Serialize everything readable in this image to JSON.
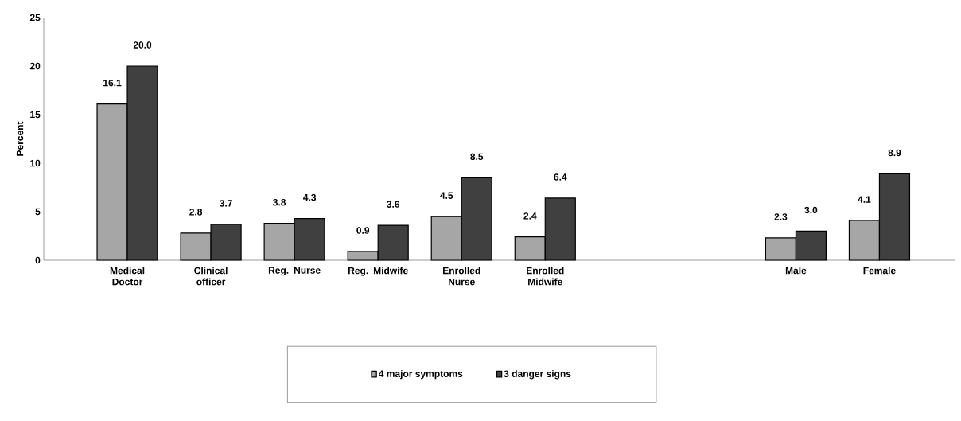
{
  "chart_data": {
    "type": "bar",
    "ylabel": "Percent",
    "categories": [
      "Medical Doctor",
      "Clinical officer",
      "Reg. Nurse",
      "Reg. Midwife",
      "Enrolled Nurse",
      "Enrolled Midwife",
      null,
      null,
      "Male",
      "Female"
    ],
    "series": [
      {
        "name": "4 major symptoms",
        "color": "#a6a6a6",
        "values": [
          16.1,
          2.8,
          3.8,
          0.9,
          4.5,
          2.4,
          null,
          null,
          2.3,
          4.1
        ],
        "value_labels": [
          "16.1",
          "2.8",
          "3.8",
          "0.9",
          "4.5",
          "2.4",
          null,
          null,
          "2.3",
          "4.1"
        ]
      },
      {
        "name": "3 danger signs",
        "color": "#404040",
        "values": [
          20.0,
          3.7,
          4.3,
          3.6,
          8.5,
          6.4,
          null,
          null,
          3.0,
          8.9
        ],
        "value_labels": [
          "20.0",
          "3.7",
          "4.3",
          "3.6",
          "8.5",
          "6.4",
          null,
          null,
          "3.0",
          "8.9"
        ]
      }
    ],
    "ylim": [
      0,
      25
    ],
    "yticks": [
      0,
      5,
      10,
      15,
      20,
      25
    ],
    "grid": false,
    "legend": "bottom"
  }
}
